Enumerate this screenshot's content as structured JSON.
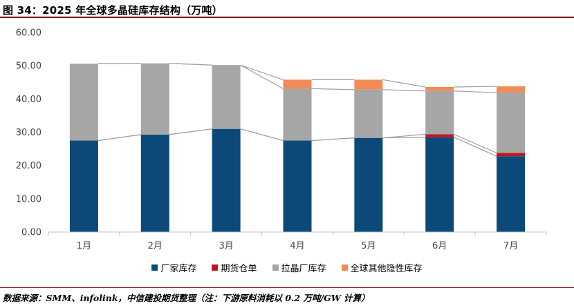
{
  "header": {
    "title": "图 34：2025 年全球多晶硅库存结构（万吨）"
  },
  "footer": {
    "source": "数据来源：SMM、infolink，中信建投期货整理（注：下游原料消耗以 0.2 万吨/GW 计算）"
  },
  "chart_data": {
    "type": "bar",
    "stacked": true,
    "categories": [
      "1月",
      "2月",
      "3月",
      "4月",
      "5月",
      "6月",
      "7月"
    ],
    "y_tick_labels": [
      "0.00",
      "10.00",
      "20.00",
      "30.00",
      "40.00",
      "50.00",
      "60.00"
    ],
    "ylim": [
      0,
      60
    ],
    "grid": false,
    "legend_position": "bottom",
    "series_lines": true,
    "series": [
      {
        "name": "厂家库存",
        "color": "#0b4a78",
        "values": [
          27.5,
          29.3,
          31.0,
          27.5,
          28.3,
          28.5,
          22.8
        ]
      },
      {
        "name": "期货仓单",
        "color": "#c0161f",
        "values": [
          0,
          0,
          0,
          0,
          0,
          0.9,
          1.0
        ]
      },
      {
        "name": "拉晶厂库存",
        "color": "#a6a6a6",
        "values": [
          23.1,
          21.4,
          19.2,
          15.6,
          14.5,
          13.0,
          18.1
        ]
      },
      {
        "name": "全球其他隐性库存",
        "color": "#f08c58",
        "values": [
          0,
          0,
          0,
          2.7,
          3.0,
          1.2,
          1.9
        ]
      }
    ]
  }
}
